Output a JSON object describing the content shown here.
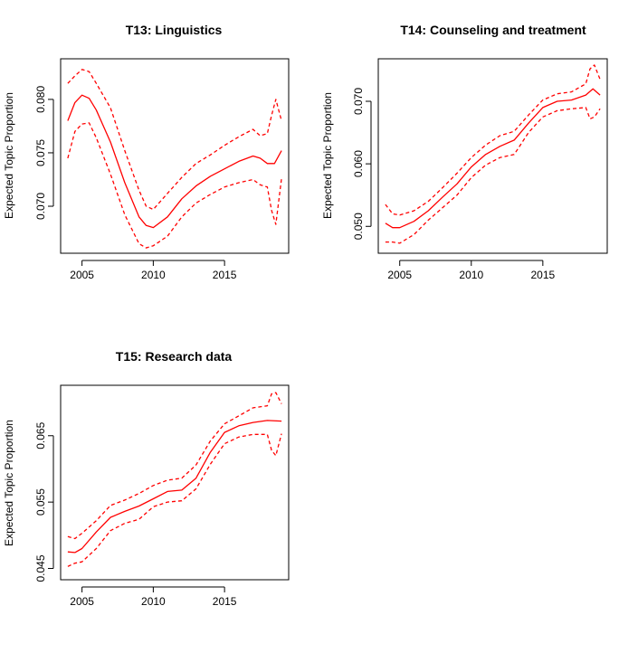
{
  "chart_data": [
    {
      "type": "line",
      "title": "T13: Linguistics",
      "xlabel": "",
      "ylabel": "Expected Topic Proportion",
      "xlim": [
        2003.5,
        2019.5
      ],
      "ylim": [
        0.0656,
        0.0838
      ],
      "x_ticks": [
        2005,
        2010,
        2015
      ],
      "x_tick_labels": [
        "2005",
        "2010",
        "2015"
      ],
      "y_ticks": [
        0.07,
        0.075,
        0.08
      ],
      "y_tick_labels": [
        "0.070",
        "0.075",
        "0.080"
      ],
      "line_color": "#ff0000",
      "grid": false,
      "series": [
        {
          "style": "solid",
          "x": [
            2004,
            2004.5,
            2005,
            2005.5,
            2006,
            2007,
            2008,
            2009,
            2009.5,
            2010,
            2011,
            2012,
            2013,
            2014,
            2015,
            2016,
            2017,
            2017.5,
            2018,
            2018.5,
            2019
          ],
          "y": [
            0.078,
            0.0797,
            0.0804,
            0.0801,
            0.079,
            0.076,
            0.0722,
            0.069,
            0.0682,
            0.068,
            0.069,
            0.0707,
            0.0719,
            0.0728,
            0.0735,
            0.0742,
            0.0747,
            0.0745,
            0.074,
            0.074,
            0.0752
          ]
        },
        {
          "style": "dashed",
          "x": [
            2004,
            2004.5,
            2005,
            2005.5,
            2006,
            2007,
            2008,
            2009,
            2009.5,
            2010,
            2011,
            2012,
            2013,
            2014,
            2015,
            2016,
            2017,
            2017.5,
            2018,
            2018.3,
            2018.6,
            2019
          ],
          "y": [
            0.0815,
            0.0822,
            0.0828,
            0.0826,
            0.0815,
            0.0792,
            0.0752,
            0.0715,
            0.07,
            0.0697,
            0.0712,
            0.0727,
            0.074,
            0.0748,
            0.0757,
            0.0765,
            0.0772,
            0.0766,
            0.0768,
            0.0785,
            0.08,
            0.078
          ]
        },
        {
          "style": "dashed",
          "x": [
            2004,
            2004.5,
            2005,
            2005.5,
            2006,
            2007,
            2008,
            2009,
            2009.5,
            2010,
            2011,
            2012,
            2013,
            2014,
            2015,
            2016,
            2017,
            2017.5,
            2018,
            2018.3,
            2018.6,
            2019
          ],
          "y": [
            0.0745,
            0.077,
            0.0777,
            0.0778,
            0.0764,
            0.073,
            0.0692,
            0.0665,
            0.0661,
            0.0663,
            0.0672,
            0.069,
            0.0703,
            0.0711,
            0.0718,
            0.0722,
            0.0725,
            0.072,
            0.0718,
            0.0696,
            0.0683,
            0.0726
          ]
        }
      ]
    },
    {
      "type": "line",
      "title": "T14: Counseling and treatment",
      "xlabel": "",
      "ylabel": "Expected Topic Proportion",
      "xlim": [
        2003.5,
        2019.5
      ],
      "ylim": [
        0.0457,
        0.0768
      ],
      "x_ticks": [
        2005,
        2010,
        2015
      ],
      "x_tick_labels": [
        "2005",
        "2010",
        "2015"
      ],
      "y_ticks": [
        0.05,
        0.06,
        0.07
      ],
      "y_tick_labels": [
        "0.050",
        "0.060",
        "0.070"
      ],
      "line_color": "#ff0000",
      "grid": false,
      "series": [
        {
          "style": "solid",
          "x": [
            2004,
            2004.5,
            2005,
            2006,
            2007,
            2008,
            2009,
            2010,
            2011,
            2012,
            2013,
            2014,
            2015,
            2016,
            2017,
            2018,
            2018.5,
            2019
          ],
          "y": [
            0.0505,
            0.0498,
            0.0498,
            0.0508,
            0.0525,
            0.0547,
            0.0568,
            0.0595,
            0.0615,
            0.0628,
            0.0638,
            0.0665,
            0.069,
            0.07,
            0.0702,
            0.071,
            0.072,
            0.071
          ]
        },
        {
          "style": "dashed",
          "x": [
            2004,
            2004.5,
            2005,
            2006,
            2007,
            2008,
            2009,
            2010,
            2011,
            2012,
            2013,
            2014,
            2015,
            2016,
            2017,
            2018,
            2018.3,
            2018.6,
            2019
          ],
          "y": [
            0.0535,
            0.052,
            0.0518,
            0.0525,
            0.054,
            0.0562,
            0.0585,
            0.061,
            0.063,
            0.0645,
            0.0652,
            0.0678,
            0.0702,
            0.0712,
            0.0715,
            0.0728,
            0.0752,
            0.0758,
            0.0735
          ]
        },
        {
          "style": "dashed",
          "x": [
            2004,
            2004.5,
            2005,
            2006,
            2007,
            2008,
            2009,
            2010,
            2011,
            2012,
            2013,
            2014,
            2015,
            2016,
            2017,
            2018,
            2018.3,
            2018.6,
            2019
          ],
          "y": [
            0.0475,
            0.0475,
            0.0473,
            0.0487,
            0.051,
            0.053,
            0.055,
            0.0578,
            0.0598,
            0.061,
            0.0615,
            0.065,
            0.0675,
            0.0685,
            0.0688,
            0.069,
            0.0672,
            0.0675,
            0.0688
          ]
        }
      ]
    },
    {
      "type": "line",
      "title": "T15: Research data",
      "xlabel": "",
      "ylabel": "Expected Topic Proportion",
      "xlim": [
        2003.5,
        2019.5
      ],
      "ylim": [
        0.0433,
        0.0726
      ],
      "x_ticks": [
        2005,
        2010,
        2015
      ],
      "x_tick_labels": [
        "2005",
        "2010",
        "2015"
      ],
      "y_ticks": [
        0.045,
        0.055,
        0.065
      ],
      "y_tick_labels": [
        "0.045",
        "0.055",
        "0.065"
      ],
      "line_color": "#ff0000",
      "grid": false,
      "series": [
        {
          "style": "solid",
          "x": [
            2004,
            2004.5,
            2005,
            2006,
            2007,
            2008,
            2009,
            2010,
            2011,
            2012,
            2013,
            2014,
            2015,
            2016,
            2017,
            2018,
            2019
          ],
          "y": [
            0.0475,
            0.0474,
            0.048,
            0.0505,
            0.0527,
            0.0536,
            0.0544,
            0.0555,
            0.0566,
            0.0568,
            0.0586,
            0.0625,
            0.0655,
            0.0665,
            0.067,
            0.0673,
            0.0672
          ]
        },
        {
          "style": "dashed",
          "x": [
            2004,
            2004.5,
            2005,
            2006,
            2007,
            2008,
            2009,
            2010,
            2011,
            2012,
            2013,
            2014,
            2015,
            2016,
            2017,
            2018,
            2018.3,
            2018.6,
            2019
          ],
          "y": [
            0.0498,
            0.0495,
            0.0503,
            0.0522,
            0.0545,
            0.0553,
            0.0563,
            0.0575,
            0.0583,
            0.0586,
            0.0606,
            0.0642,
            0.0668,
            0.068,
            0.0692,
            0.0695,
            0.0713,
            0.0715,
            0.0698
          ]
        },
        {
          "style": "dashed",
          "x": [
            2004,
            2004.5,
            2005,
            2006,
            2007,
            2008,
            2009,
            2010,
            2011,
            2012,
            2013,
            2014,
            2015,
            2016,
            2017,
            2018,
            2018.3,
            2018.6,
            2019
          ],
          "y": [
            0.0453,
            0.0458,
            0.046,
            0.048,
            0.0507,
            0.0518,
            0.0524,
            0.0543,
            0.055,
            0.0552,
            0.057,
            0.0607,
            0.0638,
            0.0648,
            0.0652,
            0.0652,
            0.0628,
            0.062,
            0.0653
          ]
        }
      ]
    }
  ]
}
